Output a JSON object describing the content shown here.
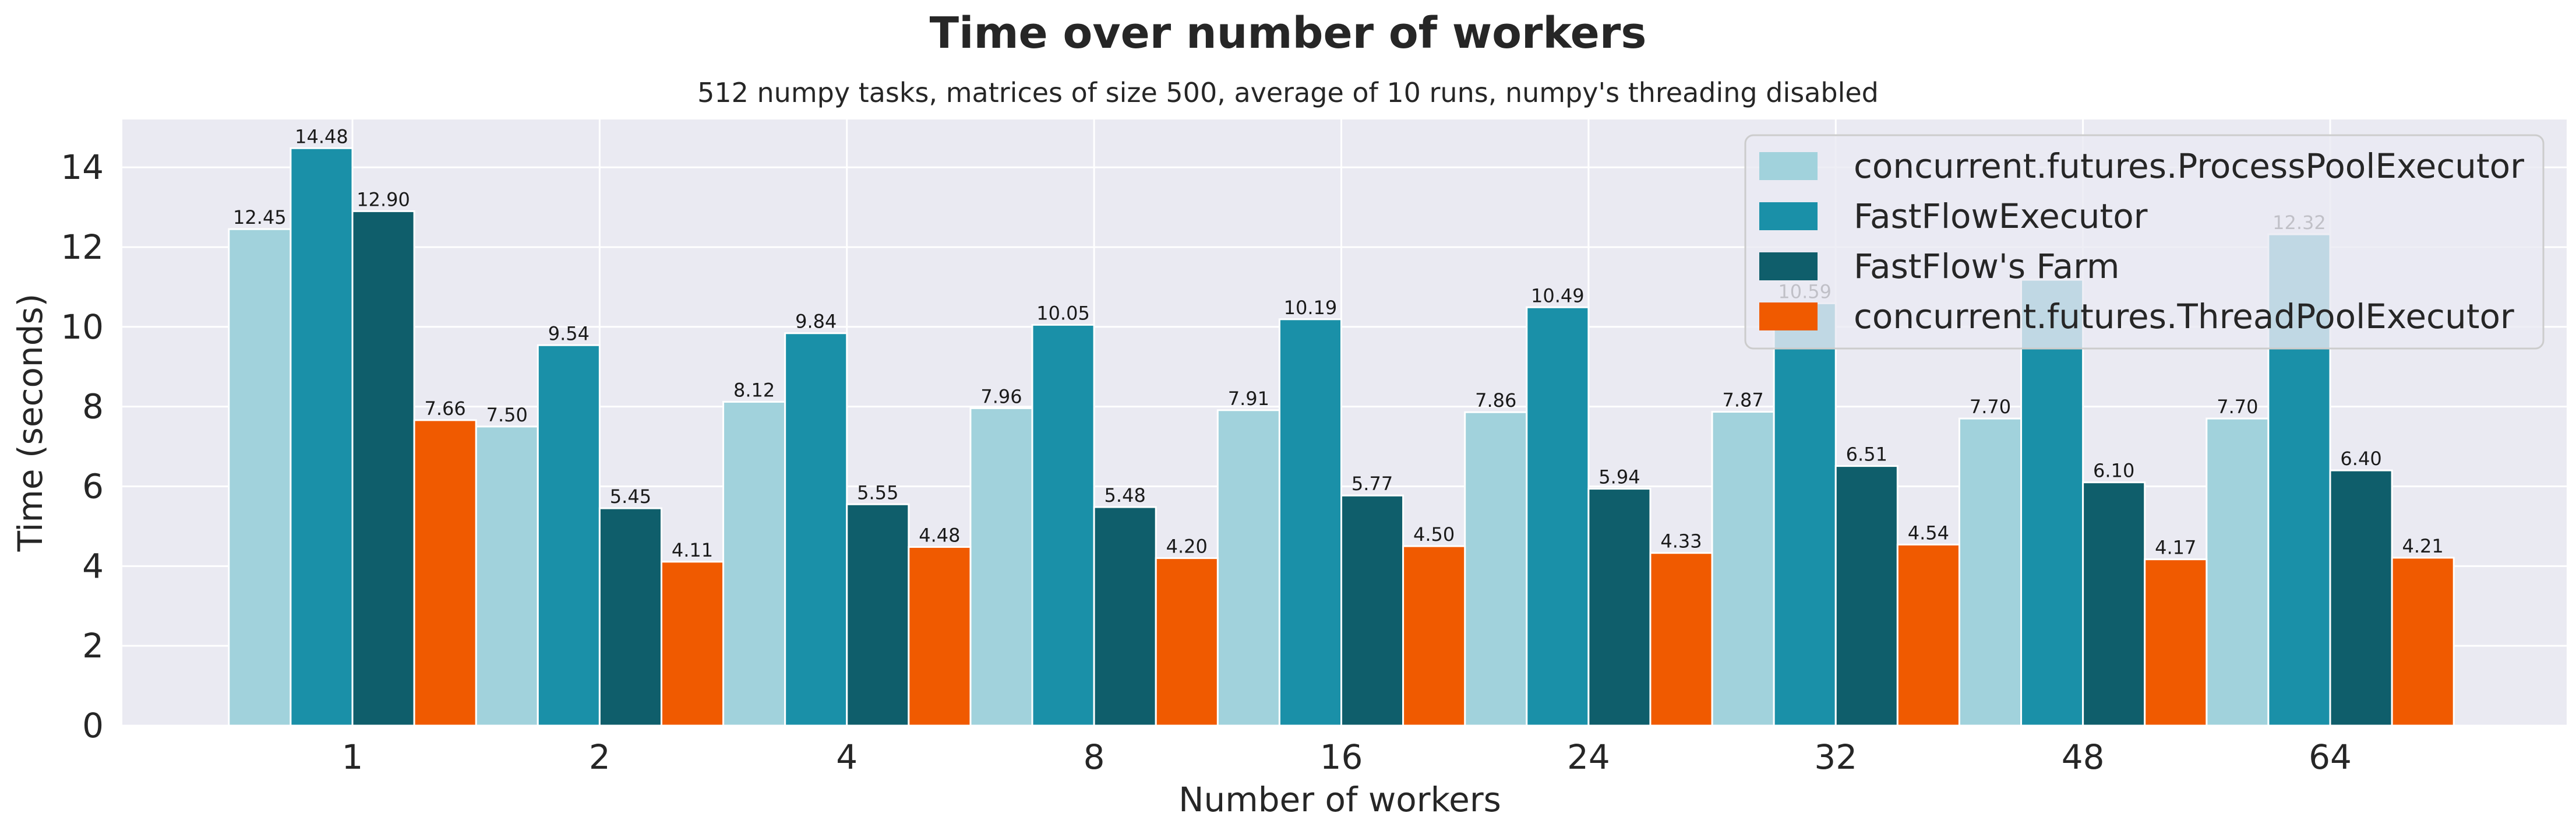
{
  "chart_data": {
    "type": "bar",
    "title": "Time over number of workers",
    "subtitle": "512 numpy tasks, matrices of size 500, average of 10 runs, numpy's threading disabled",
    "xlabel": "Number of workers",
    "ylabel": "Time (seconds)",
    "ylim": [
      0,
      15.2
    ],
    "yticks": [
      0,
      2,
      4,
      6,
      8,
      10,
      12,
      14
    ],
    "grid": true,
    "legend_position": "top-right",
    "categories": [
      "1",
      "2",
      "4",
      "8",
      "16",
      "24",
      "32",
      "48",
      "64"
    ],
    "series": [
      {
        "name": "concurrent.futures.ProcessPoolExecutor",
        "color": "#a1d2dc",
        "values": [
          12.45,
          7.5,
          8.12,
          7.96,
          7.91,
          7.86,
          7.87,
          7.7,
          7.7
        ],
        "labels": [
          "12.45",
          "7.50",
          "8.12",
          "7.96",
          "7.91",
          "7.86",
          "7.87",
          "7.70",
          "7.70"
        ]
      },
      {
        "name": "FastFlowExecutor",
        "color": "#1a90a8",
        "values": [
          14.48,
          9.54,
          9.84,
          10.05,
          10.19,
          10.49,
          10.59,
          11.18,
          12.32
        ],
        "labels": [
          "14.48",
          "9.54",
          "9.84",
          "10.05",
          "10.19",
          "10.49",
          "10.59",
          "",
          "12.32"
        ]
      },
      {
        "name": "FastFlow's Farm",
        "color": "#0f5e6b",
        "values": [
          12.9,
          5.45,
          5.55,
          5.48,
          5.77,
          5.94,
          6.51,
          6.1,
          6.4
        ],
        "labels": [
          "12.90",
          "5.45",
          "5.55",
          "5.48",
          "5.77",
          "5.94",
          "6.51",
          "6.10",
          "6.40"
        ]
      },
      {
        "name": "concurrent.futures.ThreadPoolExecutor",
        "color": "#f05a00",
        "values": [
          7.66,
          4.11,
          4.48,
          4.2,
          4.5,
          4.33,
          4.54,
          4.17,
          4.21
        ],
        "labels": [
          "7.66",
          "4.11",
          "4.48",
          "4.20",
          "4.50",
          "4.33",
          "4.54",
          "4.17",
          "4.21"
        ]
      }
    ]
  }
}
